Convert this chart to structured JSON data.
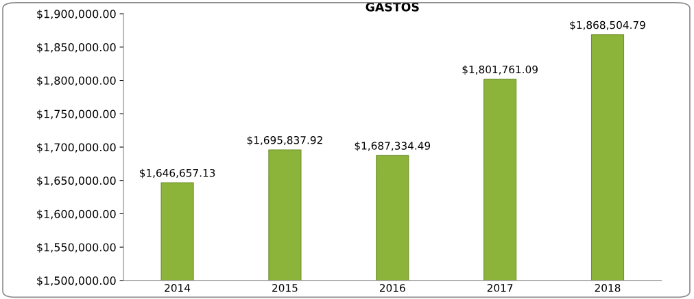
{
  "chart_data": {
    "type": "bar",
    "title": "GASTOS",
    "categories": [
      "2014",
      "2015",
      "2016",
      "2017",
      "2018"
    ],
    "values": [
      1646657.13,
      1695837.92,
      1687334.49,
      1801761.09,
      1868504.79
    ],
    "value_labels": [
      "$1,646,657.13",
      "$1,695,837.92",
      "$1,687,334.49",
      "$1,801,761.09",
      "$1,868,504.79"
    ],
    "color": "#8db43a",
    "ylim": [
      1500000,
      1900000
    ],
    "yticks": [
      {
        "value": 1500000,
        "label": "$1,500,000.00"
      },
      {
        "value": 1550000,
        "label": "$1,550,000.00"
      },
      {
        "value": 1600000,
        "label": "$1,600,000.00"
      },
      {
        "value": 1650000,
        "label": "$1,650,000.00"
      },
      {
        "value": 1700000,
        "label": "$1,700,000.00"
      },
      {
        "value": 1750000,
        "label": "$1,750,000.00"
      },
      {
        "value": 1800000,
        "label": "$1,800,000.00"
      },
      {
        "value": 1850000,
        "label": "$1,850,000.00"
      },
      {
        "value": 1900000,
        "label": "$1,900,000.00"
      }
    ],
    "grid": false,
    "legend": false
  }
}
